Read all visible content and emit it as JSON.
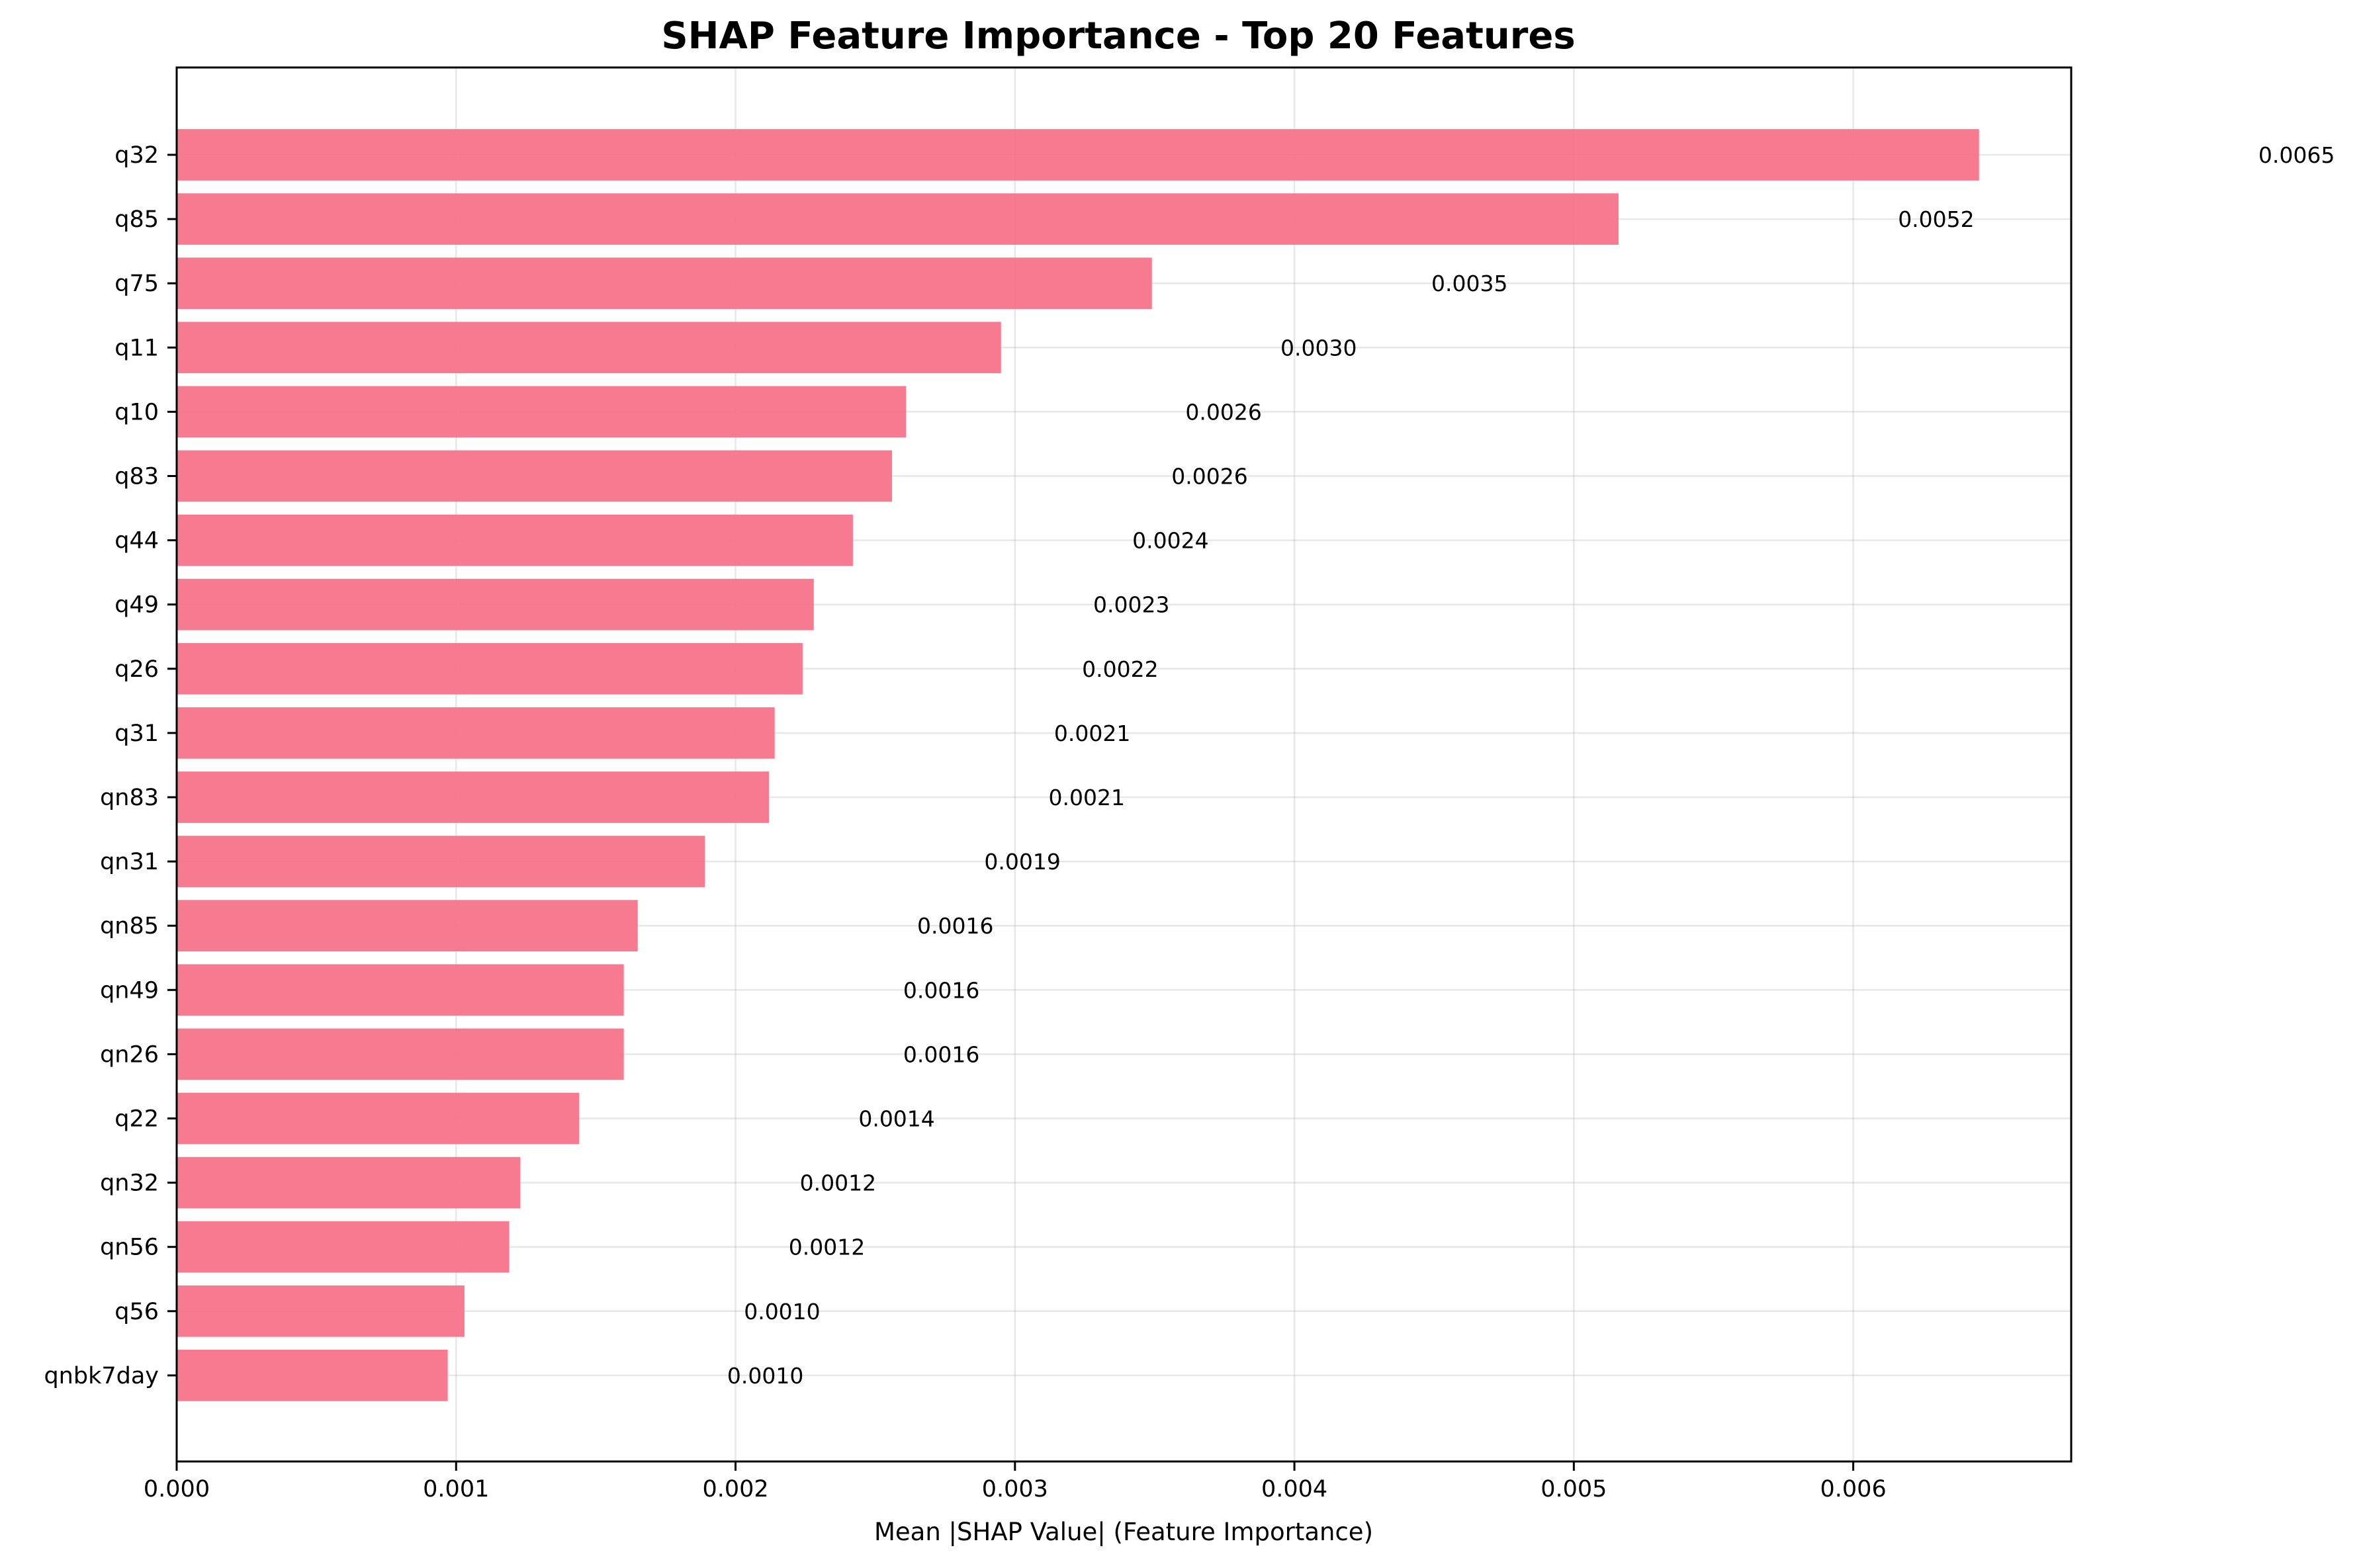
{
  "chart_data": {
    "type": "bar",
    "orientation": "horizontal",
    "title": "SHAP Feature Importance - Top 20 Features",
    "xlabel": "Mean |SHAP Value| (Feature Importance)",
    "ylabel": "",
    "xlim": [
      0,
      0.00678
    ],
    "xticks": [
      "0.000",
      "0.001",
      "0.002",
      "0.003",
      "0.004",
      "0.005",
      "0.006"
    ],
    "grid": true,
    "bar_color": "#f5748a",
    "categories": [
      "q32",
      "q85",
      "q75",
      "q11",
      "q10",
      "q83",
      "q44",
      "q49",
      "q26",
      "q31",
      "qn83",
      "qn31",
      "qn85",
      "qn49",
      "qn26",
      "q22",
      "qn32",
      "qn56",
      "q56",
      "qnbk7day"
    ],
    "values": [
      0.00645,
      0.00516,
      0.00349,
      0.00295,
      0.00261,
      0.00256,
      0.00242,
      0.00228,
      0.00224,
      0.00214,
      0.00212,
      0.00189,
      0.00165,
      0.0016,
      0.0016,
      0.00144,
      0.00123,
      0.00119,
      0.00103,
      0.00097
    ],
    "value_labels": [
      "0.0065",
      "0.0052",
      "0.0035",
      "0.0030",
      "0.0026",
      "0.0026",
      "0.0024",
      "0.0023",
      "0.0022",
      "0.0021",
      "0.0021",
      "0.0019",
      "0.0016",
      "0.0016",
      "0.0016",
      "0.0014",
      "0.0012",
      "0.0012",
      "0.0010",
      "0.0010"
    ]
  }
}
